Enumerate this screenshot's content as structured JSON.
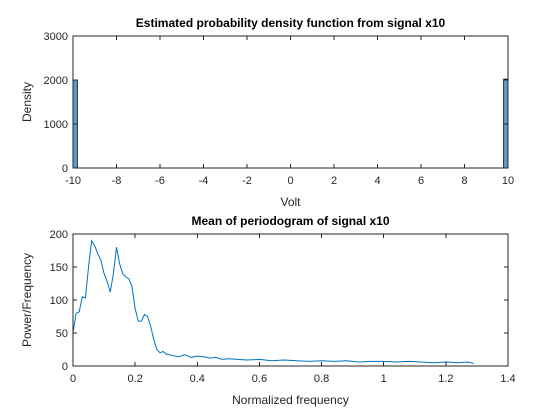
{
  "chart_data": [
    {
      "type": "bar",
      "title": "Estimated probability density function from signal x10",
      "xlabel": "Volt",
      "ylabel": "Density",
      "xlim": [
        -10,
        10
      ],
      "ylim": [
        0,
        3000
      ],
      "xticks": [
        -10,
        -8,
        -6,
        -4,
        -2,
        0,
        2,
        4,
        6,
        8,
        10
      ],
      "yticks": [
        0,
        1000,
        2000,
        3000
      ],
      "grid": false,
      "bar_color": "#5B9BD5",
      "bars": [
        {
          "x_start": -10,
          "x_end": -9.8,
          "value": 2000
        },
        {
          "x_start": 9.8,
          "x_end": 10,
          "value": 2020
        }
      ]
    },
    {
      "type": "line",
      "title": "Mean of periodogram of signal x10",
      "xlabel": "Normalized frequency",
      "ylabel": "Power/Frequency",
      "xlim": [
        0,
        1.4
      ],
      "ylim": [
        0,
        200
      ],
      "xticks": [
        0,
        0.2,
        0.4,
        0.6,
        0.8,
        1,
        1.2,
        1.4
      ],
      "yticks": [
        0,
        50,
        100,
        150,
        200
      ],
      "grid": false,
      "line_color": "#0072BD",
      "series": [
        {
          "x": [
            0,
            0.01,
            0.02,
            0.03,
            0.04,
            0.05,
            0.06,
            0.07,
            0.08,
            0.09,
            0.1,
            0.11,
            0.12,
            0.13,
            0.14,
            0.15,
            0.16,
            0.17,
            0.18,
            0.19,
            0.2,
            0.21,
            0.22,
            0.23,
            0.24,
            0.25,
            0.26,
            0.27,
            0.28,
            0.29,
            0.3,
            0.32,
            0.34,
            0.36,
            0.38,
            0.4,
            0.42,
            0.44,
            0.46,
            0.48,
            0.5,
            0.53,
            0.56,
            0.6,
            0.64,
            0.68,
            0.72,
            0.76,
            0.8,
            0.84,
            0.88,
            0.92,
            0.96,
            1.0,
            1.04,
            1.08,
            1.12,
            1.16,
            1.2,
            1.24,
            1.27,
            1.29
          ],
          "y": [
            50,
            80,
            82,
            105,
            103,
            150,
            190,
            182,
            170,
            160,
            140,
            128,
            112,
            140,
            180,
            155,
            140,
            135,
            132,
            120,
            87,
            68,
            68,
            78,
            75,
            60,
            40,
            25,
            20,
            22,
            18,
            16,
            14,
            17,
            13,
            15,
            14,
            12,
            13,
            10,
            11,
            10,
            9,
            10,
            8,
            9,
            8,
            7,
            8,
            7,
            8,
            6,
            7,
            7,
            6,
            7,
            6,
            5,
            6,
            5,
            6,
            4
          ]
        }
      ]
    }
  ]
}
